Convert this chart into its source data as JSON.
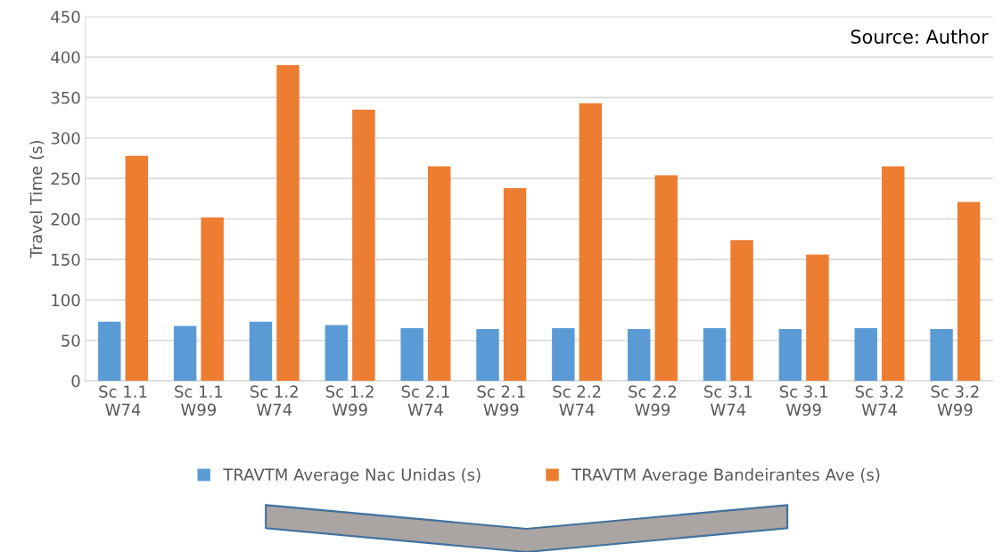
{
  "chart_data": {
    "type": "bar",
    "ylabel": "Travel Time (s)",
    "categories": [
      "Sc 1.1\nW74",
      "Sc 1.1\nW99",
      "Sc 1.2\nW74",
      "Sc 1.2\nW99",
      "Sc 2.1\nW74",
      "Sc 2.1\nW99",
      "Sc 2.2\nW74",
      "Sc 2.2\nW99",
      "Sc 3.1\nW74",
      "Sc 3.1\nW99",
      "Sc 3.2\nW74",
      "Sc 3.2\nW99"
    ],
    "series": [
      {
        "name": "TRAVTM Average Nac Unidas (s)",
        "color": "#5b9bd5",
        "values": [
          73,
          68,
          73,
          69,
          65,
          64,
          65,
          64,
          65,
          64,
          65,
          64
        ]
      },
      {
        "name": "TRAVTM Average Bandeirantes Ave (s)",
        "color": "#ed7d31",
        "values": [
          278,
          202,
          390,
          335,
          265,
          238,
          343,
          254,
          174,
          156,
          265,
          221
        ]
      }
    ],
    "ylim": [
      0,
      450
    ],
    "yticks": [
      0,
      50,
      100,
      150,
      200,
      250,
      300,
      350,
      400,
      450
    ],
    "grid": "y",
    "legend": "bottom",
    "annotations": [
      "Source: Author"
    ]
  }
}
